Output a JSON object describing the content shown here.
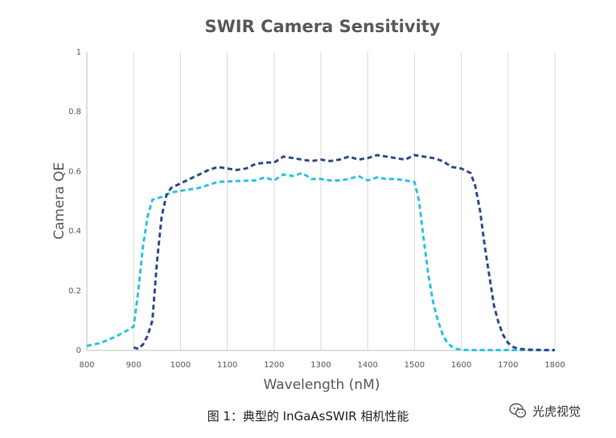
{
  "chart_data": {
    "type": "line",
    "title": "SWIR Camera Sensitivity",
    "xlabel": "Wavelength (nM)",
    "ylabel": "Camera QE",
    "xlim": [
      800,
      1800
    ],
    "ylim": [
      0,
      1
    ],
    "x_ticks": [
      "800",
      "900",
      "1000",
      "1100",
      "1200",
      "1300",
      "1400",
      "1500",
      "1600",
      "1700",
      "1800"
    ],
    "y_ticks": [
      "0",
      "0.2",
      "0.4",
      "0.6",
      "0.8",
      "1"
    ],
    "grid": "vertical",
    "legend": "none",
    "series": [
      {
        "name": "light-blue",
        "color": "#29c4e3",
        "style": "dashed",
        "x": [
          800,
          830,
          860,
          890,
          900,
          910,
          920,
          930,
          940,
          960,
          980,
          1000,
          1040,
          1080,
          1120,
          1160,
          1180,
          1200,
          1220,
          1240,
          1260,
          1280,
          1300,
          1320,
          1340,
          1360,
          1380,
          1400,
          1420,
          1440,
          1460,
          1480,
          1500,
          1510,
          1520,
          1530,
          1540,
          1550,
          1560,
          1570,
          1580,
          1590,
          1600,
          1620,
          1660,
          1700,
          1760,
          1800
        ],
        "y": [
          0.015,
          0.025,
          0.045,
          0.07,
          0.08,
          0.2,
          0.35,
          0.45,
          0.505,
          0.515,
          0.53,
          0.535,
          0.545,
          0.565,
          0.568,
          0.57,
          0.58,
          0.57,
          0.59,
          0.585,
          0.595,
          0.575,
          0.575,
          0.57,
          0.57,
          0.575,
          0.585,
          0.57,
          0.58,
          0.575,
          0.575,
          0.57,
          0.565,
          0.5,
          0.37,
          0.25,
          0.16,
          0.1,
          0.055,
          0.025,
          0.012,
          0.005,
          0.002,
          0.001,
          0.001,
          0.001,
          0.001,
          0.001
        ]
      },
      {
        "name": "dark-blue",
        "color": "#2f4a8f",
        "style": "dashed",
        "x": [
          900,
          910,
          920,
          930,
          940,
          950,
          960,
          970,
          980,
          1000,
          1020,
          1040,
          1060,
          1080,
          1100,
          1120,
          1140,
          1160,
          1180,
          1200,
          1220,
          1240,
          1260,
          1280,
          1300,
          1320,
          1340,
          1360,
          1380,
          1400,
          1420,
          1440,
          1460,
          1480,
          1500,
          1520,
          1540,
          1560,
          1580,
          1600,
          1620,
          1630,
          1640,
          1650,
          1660,
          1670,
          1680,
          1690,
          1700,
          1710,
          1720,
          1740,
          1760,
          1780,
          1800
        ],
        "y": [
          0.01,
          0.005,
          0.02,
          0.05,
          0.1,
          0.3,
          0.45,
          0.52,
          0.545,
          0.56,
          0.575,
          0.59,
          0.605,
          0.615,
          0.61,
          0.605,
          0.61,
          0.625,
          0.63,
          0.63,
          0.65,
          0.645,
          0.64,
          0.635,
          0.64,
          0.635,
          0.64,
          0.65,
          0.64,
          0.645,
          0.655,
          0.65,
          0.645,
          0.64,
          0.655,
          0.65,
          0.645,
          0.635,
          0.615,
          0.61,
          0.595,
          0.55,
          0.47,
          0.35,
          0.25,
          0.15,
          0.09,
          0.05,
          0.025,
          0.012,
          0.006,
          0.003,
          0.002,
          0.001,
          0.001
        ]
      }
    ]
  },
  "caption": "图 1：典型的 InGaAsSWIR 相机性能",
  "watermark": {
    "text": "光虎视觉",
    "icon": "wechat-icon"
  }
}
